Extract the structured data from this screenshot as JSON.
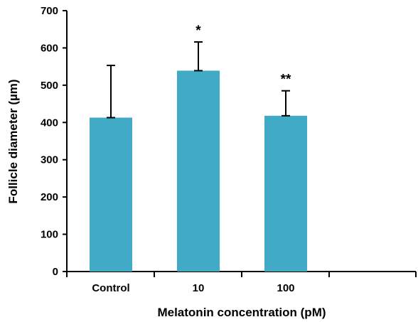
{
  "chart_data": {
    "type": "bar",
    "categories": [
      "Control",
      "10",
      "100"
    ],
    "values": [
      413,
      539,
      418
    ],
    "error_upper": [
      553,
      616,
      485
    ],
    "annotations": [
      "",
      "*",
      "**"
    ],
    "xlabel": "Melatonin concentration (pM)",
    "ylabel": "Follicle diameter (µm)",
    "ylim": [
      0,
      700
    ],
    "yticks": [
      "0",
      "100",
      "200",
      "300",
      "400",
      "500",
      "600",
      "700"
    ],
    "grid": false,
    "bar_color": "#41abc7"
  }
}
